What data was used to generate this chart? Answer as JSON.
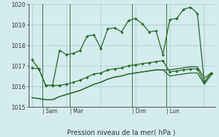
{
  "background_color": "#d4ecee",
  "grid_color": "#aacdd1",
  "line_color": "#2d6a2d",
  "title": "Pression niveau de la mer( hPa )",
  "ylim": [
    1015,
    1020
  ],
  "yticks": [
    1015,
    1016,
    1017,
    1018,
    1019,
    1020
  ],
  "series1_y": [
    1017.3,
    1016.85,
    1016.05,
    1016.05,
    1017.75,
    1017.55,
    1017.6,
    1017.75,
    1018.45,
    1018.5,
    1017.85,
    1018.8,
    1018.85,
    1018.65,
    1019.2,
    1019.3,
    1019.05,
    1018.65,
    1018.7,
    1017.55,
    1019.25,
    1019.3,
    1019.75,
    1019.85,
    1019.55,
    1016.2,
    1016.65
  ],
  "series2_y": [
    1016.9,
    1016.85,
    1016.05,
    1016.05,
    1016.05,
    1016.1,
    1016.2,
    1016.3,
    1016.45,
    1016.6,
    1016.65,
    1016.8,
    1016.85,
    1016.9,
    1017.0,
    1017.05,
    1017.1,
    1017.15,
    1017.2,
    1017.25,
    1016.7,
    1016.75,
    1016.8,
    1016.85,
    1016.85,
    1016.2,
    1016.65
  ],
  "series3_y": [
    1015.45,
    1015.4,
    1015.35,
    1015.35,
    1015.5,
    1015.6,
    1015.7,
    1015.8,
    1015.95,
    1016.1,
    1016.2,
    1016.35,
    1016.45,
    1016.5,
    1016.6,
    1016.65,
    1016.7,
    1016.75,
    1016.8,
    1016.8,
    1016.5,
    1016.55,
    1016.6,
    1016.65,
    1016.65,
    1016.1,
    1016.55
  ],
  "series4_y": [
    1015.45,
    1015.4,
    1015.35,
    1015.35,
    1015.5,
    1015.6,
    1015.7,
    1015.8,
    1015.95,
    1016.1,
    1016.2,
    1016.35,
    1016.45,
    1016.5,
    1016.6,
    1016.65,
    1016.7,
    1016.75,
    1016.8,
    1016.8,
    1016.8,
    1016.85,
    1016.9,
    1016.95,
    1016.95,
    1016.4,
    1016.65
  ],
  "day_vlines": [
    1.5,
    5.5,
    14.5,
    19.5
  ],
  "day_labels": [
    [
      "Sam",
      1.5
    ],
    [
      "Mar",
      5.5
    ],
    [
      "Dim",
      14.5
    ],
    [
      "Lun",
      19.5
    ]
  ],
  "marker_size": 2.0,
  "line_width": 1.0
}
